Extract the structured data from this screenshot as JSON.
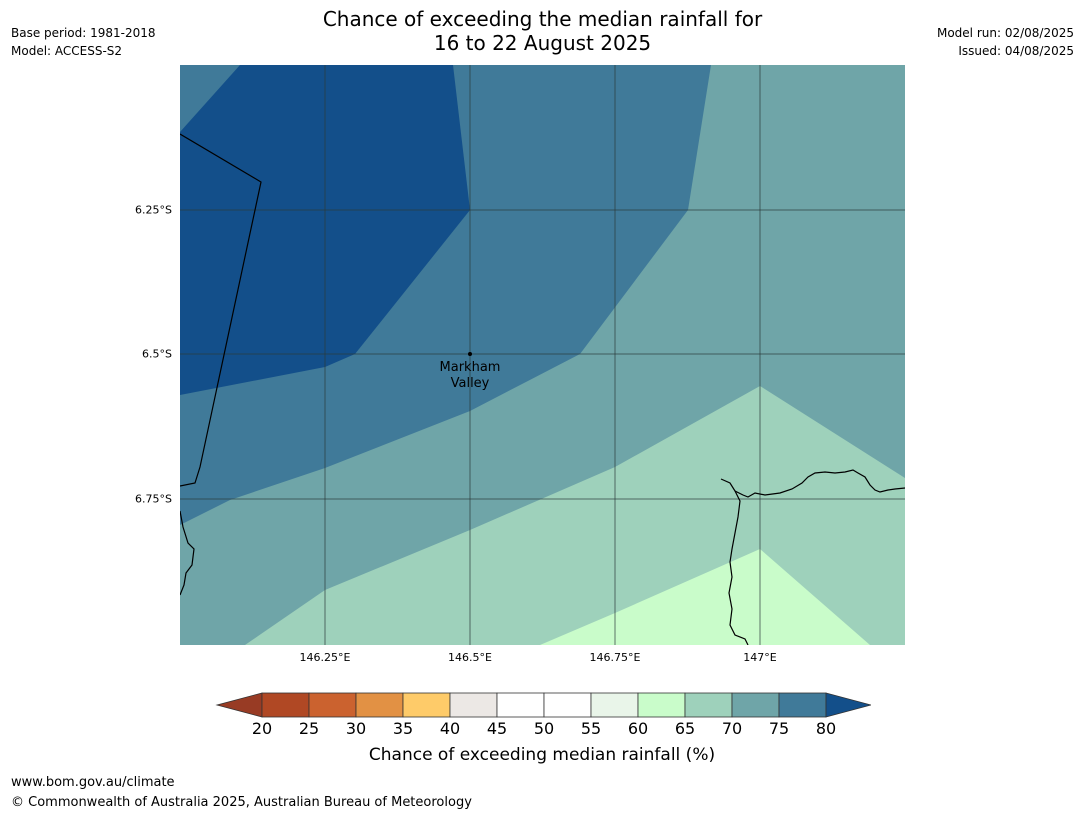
{
  "title": {
    "line1": "Chance of exceeding the median rainfall for",
    "line2": "16 to 22 August 2025"
  },
  "meta_left": {
    "base_period": "Base period: 1981-2018",
    "model": "Model: ACCESS-S2"
  },
  "meta_right": {
    "model_run": "Model run: 02/08/2025",
    "issued": "Issued: 04/08/2025"
  },
  "map": {
    "latitude_ticks": [
      "6.25°S",
      "6.5°S",
      "6.75°S"
    ],
    "longitude_ticks": [
      "146.25°E",
      "146.5°E",
      "146.75°E",
      "147°E"
    ],
    "place": {
      "name_line1": "Markham",
      "name_line2": "Valley"
    },
    "band_colors": {
      "80_plus": "#134f8a",
      "75_80": "#407a99",
      "70_75": "#6fa5a8",
      "65_70": "#9ed1bb",
      "60_65": "#c9fcca"
    }
  },
  "colorbar": {
    "title": "Chance of exceeding median rainfall (%)",
    "labels": [
      "20",
      "25",
      "30",
      "35",
      "40",
      "45",
      "50",
      "55",
      "60",
      "65",
      "70",
      "75",
      "80"
    ],
    "under_color": "#983b24",
    "over_color": "#134f8a",
    "colors": [
      "#b04824",
      "#cb622f",
      "#e29144",
      "#fecb69",
      "#ece8e5",
      "#ffffff",
      "#ffffff",
      "#e9f5e9",
      "#c9fcca",
      "#9ed1bb",
      "#6fa5a8",
      "#407a99"
    ]
  },
  "footer": {
    "url": "www.bom.gov.au/climate",
    "copyright": "© Commonwealth of Australia 2025, Australian Bureau of Meteorology"
  }
}
